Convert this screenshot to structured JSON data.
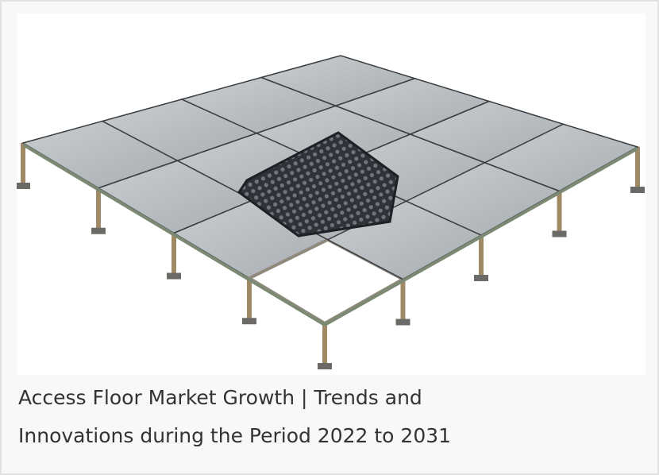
{
  "caption": [
    "Access Floor Market Growth | Trends and",
    "Innovations during the Period 2022 to 2031"
  ]
}
